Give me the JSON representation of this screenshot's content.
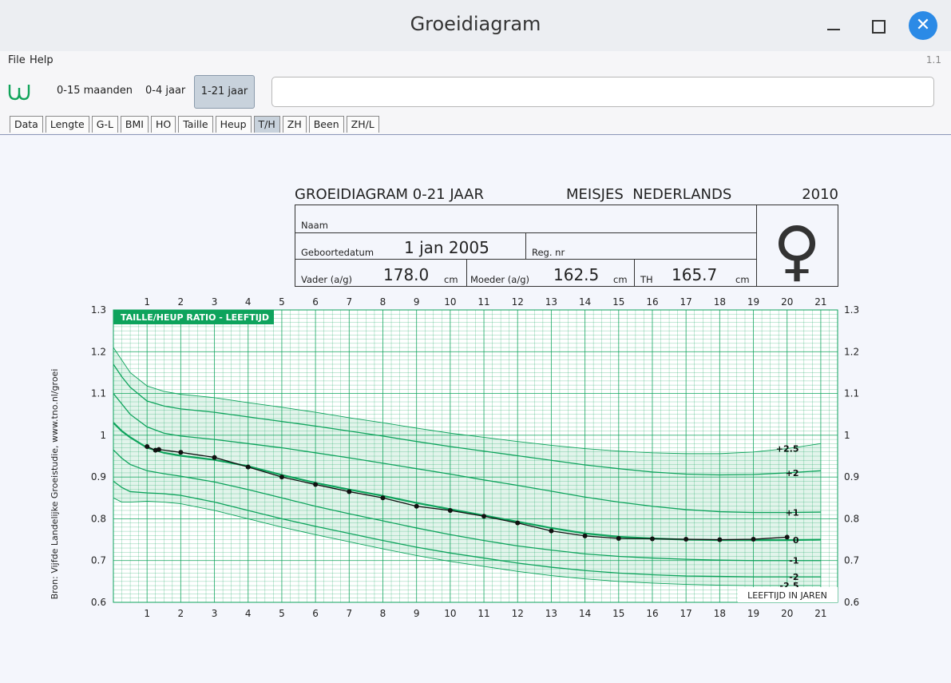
{
  "window": {
    "title": "Groeidiagram"
  },
  "menubar": {
    "items": [
      "File",
      "Help"
    ],
    "version": "1.1"
  },
  "toolbar": {
    "periods": [
      "0-15 maanden",
      "0-4 jaar",
      "1-21 jaar"
    ],
    "active_period": "1-21 jaar",
    "input_value": ""
  },
  "tabs": {
    "items": [
      "Data",
      "Lengte",
      "G-L",
      "BMI",
      "HO",
      "Taille",
      "Heup",
      "T/H",
      "ZH",
      "Been",
      "ZH/L"
    ],
    "active": "T/H"
  },
  "header": {
    "title": "GROEIDIAGRAM 0-21 JAAR",
    "group": "MEISJES  NEDERLANDS",
    "year": "2010",
    "naam_label": "Naam",
    "geboortedatum_label": "Geboortedatum",
    "geboortedatum": "1 jan 2005",
    "regnr_label": "Reg. nr",
    "vader_label": "Vader (a/g)",
    "vader": "178.0",
    "moeder_label": "Moeder (a/g)",
    "moeder": "162.5",
    "th_label": "TH",
    "th": "165.7",
    "unit": "cm",
    "gender_symbol": "♀"
  },
  "chart_data": {
    "type": "line",
    "title": "TAILLE/HEUP RATIO - LEEFTIJD",
    "xlabel": "LEEFTIJD IN JAREN",
    "source": "Bron: Vijfde Landelijke Groeistudie, www.tno.nl/groei",
    "xlim": [
      0,
      21.5
    ],
    "ylim": [
      0.6,
      1.3
    ],
    "x_ticks": [
      1,
      2,
      3,
      4,
      5,
      6,
      7,
      8,
      9,
      10,
      11,
      12,
      13,
      14,
      15,
      16,
      17,
      18,
      19,
      20,
      21
    ],
    "y_ticks": [
      "0.6",
      "0.7",
      "0.8",
      "0.9",
      "1",
      "1.1",
      "1.2",
      "1.3"
    ],
    "grid": true,
    "reference_ages": [
      0,
      0.25,
      0.5,
      1,
      1.5,
      2,
      3,
      4,
      5,
      6,
      7,
      8,
      9,
      10,
      11,
      12,
      13,
      14,
      15,
      16,
      17,
      18,
      19,
      20,
      21
    ],
    "sds_curves": [
      {
        "name": "+2.5",
        "values": [
          1.21,
          1.18,
          1.15,
          1.118,
          1.105,
          1.098,
          1.09,
          1.078,
          1.067,
          1.055,
          1.042,
          1.03,
          1.017,
          1.005,
          0.995,
          0.985,
          0.976,
          0.968,
          0.962,
          0.958,
          0.956,
          0.956,
          0.96,
          0.968,
          0.98
        ]
      },
      {
        "name": "+2",
        "values": [
          1.17,
          1.14,
          1.115,
          1.082,
          1.07,
          1.063,
          1.055,
          1.044,
          1.033,
          1.022,
          1.01,
          0.998,
          0.985,
          0.973,
          0.962,
          0.951,
          0.94,
          0.929,
          0.92,
          0.912,
          0.907,
          0.905,
          0.906,
          0.91,
          0.915
        ]
      },
      {
        "name": "+1",
        "values": [
          1.1,
          1.075,
          1.05,
          1.02,
          1.005,
          0.998,
          0.99,
          0.98,
          0.97,
          0.958,
          0.946,
          0.933,
          0.92,
          0.907,
          0.893,
          0.88,
          0.866,
          0.852,
          0.84,
          0.83,
          0.822,
          0.817,
          0.815,
          0.815,
          0.816
        ]
      },
      {
        "name": "0",
        "values": [
          1.03,
          1.01,
          0.995,
          0.97,
          0.958,
          0.951,
          0.941,
          0.926,
          0.905,
          0.886,
          0.87,
          0.855,
          0.838,
          0.823,
          0.808,
          0.793,
          0.778,
          0.765,
          0.757,
          0.753,
          0.75,
          0.749,
          0.749,
          0.749,
          0.75
        ]
      },
      {
        "name": "-1",
        "values": [
          0.965,
          0.945,
          0.93,
          0.915,
          0.908,
          0.902,
          0.888,
          0.87,
          0.85,
          0.83,
          0.812,
          0.795,
          0.778,
          0.762,
          0.748,
          0.735,
          0.725,
          0.716,
          0.71,
          0.706,
          0.703,
          0.701,
          0.7,
          0.7,
          0.7
        ]
      },
      {
        "name": "-2",
        "values": [
          0.89,
          0.875,
          0.865,
          0.862,
          0.86,
          0.856,
          0.84,
          0.82,
          0.8,
          0.782,
          0.765,
          0.748,
          0.732,
          0.718,
          0.706,
          0.694,
          0.684,
          0.676,
          0.67,
          0.666,
          0.663,
          0.662,
          0.661,
          0.661,
          0.661
        ]
      },
      {
        "name": "-2.5",
        "values": [
          0.85,
          0.84,
          0.84,
          0.842,
          0.84,
          0.836,
          0.82,
          0.8,
          0.78,
          0.762,
          0.745,
          0.728,
          0.712,
          0.698,
          0.686,
          0.674,
          0.664,
          0.656,
          0.65,
          0.646,
          0.643,
          0.641,
          0.64,
          0.64,
          0.64
        ]
      }
    ],
    "patient": {
      "x": [
        1,
        1.25,
        1.35,
        2,
        3,
        4,
        5,
        6,
        7,
        8,
        9,
        10,
        11,
        12,
        13,
        14,
        15,
        16,
        17,
        18,
        19,
        20
      ],
      "y": [
        0.973,
        0.964,
        0.966,
        0.959,
        0.947,
        0.924,
        0.9,
        0.882,
        0.865,
        0.85,
        0.83,
        0.82,
        0.806,
        0.79,
        0.771,
        0.759,
        0.753,
        0.752,
        0.751,
        0.75,
        0.751,
        0.756
      ]
    }
  }
}
